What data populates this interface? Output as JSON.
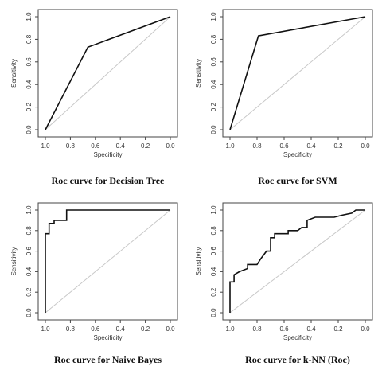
{
  "chart_data": [
    {
      "type": "line",
      "caption": "Roc curve for Decision Tree",
      "xlabel": "Specificity",
      "ylabel": "Sensitivity",
      "xlim": [
        1.0,
        0.0
      ],
      "ylim": [
        0.0,
        1.0
      ],
      "xticks": [
        "1.0",
        "0.8",
        "0.6",
        "0.4",
        "0.2",
        "0.0"
      ],
      "yticks": [
        "0.0",
        "0.2",
        "0.4",
        "0.6",
        "0.8",
        "1.0"
      ],
      "diagonal": true,
      "series": [
        {
          "x": [
            1.0,
            0.66,
            0.0
          ],
          "y": [
            0.0,
            0.73,
            1.0
          ]
        }
      ]
    },
    {
      "type": "line",
      "caption": "Roc curve for SVM",
      "xlabel": "Specificity",
      "ylabel": "Sensitivity",
      "xlim": [
        1.0,
        0.0
      ],
      "ylim": [
        0.0,
        1.0
      ],
      "xticks": [
        "1.0",
        "0.8",
        "0.6",
        "0.4",
        "0.2",
        "0.0"
      ],
      "yticks": [
        "0.0",
        "0.2",
        "0.4",
        "0.6",
        "0.8",
        "1.0"
      ],
      "diagonal": true,
      "series": [
        {
          "x": [
            1.0,
            0.79,
            0.0
          ],
          "y": [
            0.0,
            0.83,
            1.0
          ]
        }
      ]
    },
    {
      "type": "line",
      "caption": "Roc curve for Naive Bayes",
      "xlabel": "Specificity",
      "ylabel": "Sensitivity",
      "xlim": [
        1.0,
        0.0
      ],
      "ylim": [
        0.0,
        1.0
      ],
      "xticks": [
        "1.0",
        "0.8",
        "0.6",
        "0.4",
        "0.2",
        "0.0"
      ],
      "yticks": [
        "0.0",
        "0.2",
        "0.4",
        "0.6",
        "0.8",
        "1.0"
      ],
      "diagonal": true,
      "series": [
        {
          "x": [
            1.0,
            1.0,
            0.97,
            0.97,
            0.93,
            0.93,
            0.87,
            0.87,
            0.83,
            0.83,
            0.0
          ],
          "y": [
            0.0,
            0.77,
            0.77,
            0.87,
            0.87,
            0.9,
            0.9,
            0.9,
            0.9,
            1.0,
            1.0
          ]
        }
      ]
    },
    {
      "type": "line",
      "caption": "Roc curve for k-NN (Roc)",
      "xlabel": "Specificity",
      "ylabel": "Sensitivity",
      "xlim": [
        1.0,
        0.0
      ],
      "ylim": [
        0.0,
        1.0
      ],
      "xticks": [
        "1.0",
        "0.8",
        "0.6",
        "0.4",
        "0.2",
        "0.0"
      ],
      "yticks": [
        "0.0",
        "0.2",
        "0.4",
        "0.6",
        "0.8",
        "1.0"
      ],
      "diagonal": true,
      "series": [
        {
          "x": [
            1.0,
            1.0,
            0.97,
            0.97,
            0.93,
            0.87,
            0.87,
            0.8,
            0.77,
            0.73,
            0.7,
            0.7,
            0.67,
            0.67,
            0.6,
            0.57,
            0.57,
            0.5,
            0.47,
            0.43,
            0.43,
            0.37,
            0.3,
            0.23,
            0.17,
            0.1,
            0.07,
            0.0
          ],
          "y": [
            0.0,
            0.3,
            0.3,
            0.37,
            0.4,
            0.43,
            0.47,
            0.47,
            0.53,
            0.6,
            0.6,
            0.73,
            0.73,
            0.77,
            0.77,
            0.77,
            0.8,
            0.8,
            0.83,
            0.83,
            0.9,
            0.93,
            0.93,
            0.93,
            0.95,
            0.97,
            1.0,
            1.0
          ]
        }
      ]
    }
  ]
}
